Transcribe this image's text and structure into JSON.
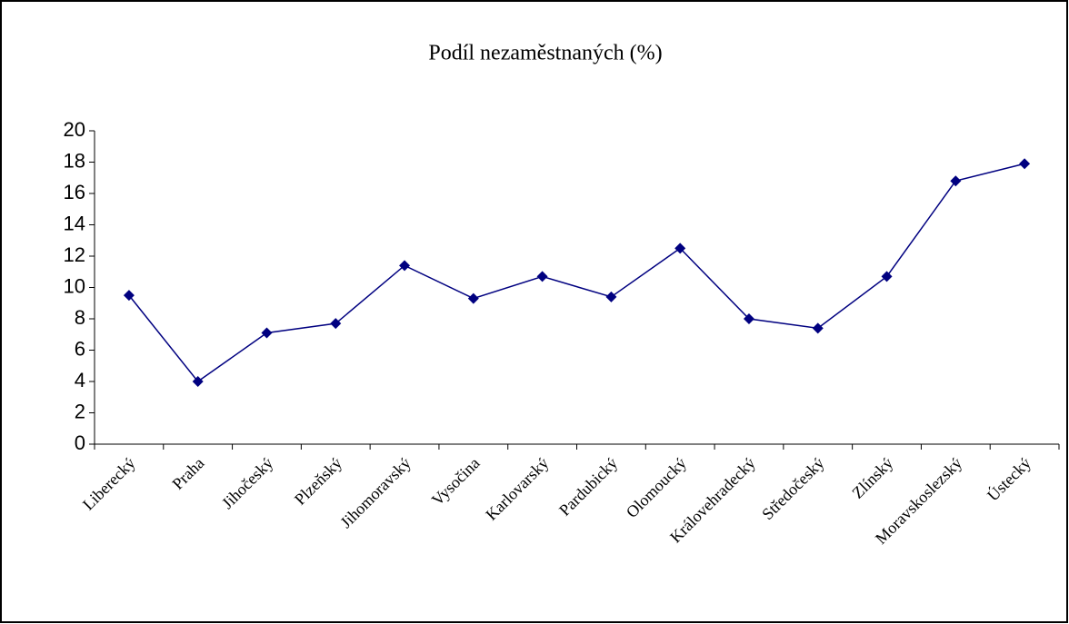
{
  "chart_data": {
    "type": "line",
    "title": "Podíl nezaměstnaných (%)",
    "categories": [
      "Liberecký",
      "Praha",
      "Jihočeský",
      "Plzeňský",
      "Jihomoravský",
      "Vysočina",
      "Karlovarský",
      "Pardubický",
      "Olomoucký",
      "Královehradecký",
      "Středočeský",
      "Zlínský",
      "Moravskoslezský",
      "Ústecký"
    ],
    "values": [
      9.5,
      4.0,
      7.1,
      7.7,
      11.4,
      9.3,
      10.7,
      9.4,
      12.5,
      8.0,
      7.4,
      10.7,
      16.8,
      17.9
    ],
    "color": "#000080",
    "ylim": [
      0,
      20
    ],
    "yticks": [
      0,
      2,
      4,
      6,
      8,
      10,
      12,
      14,
      16,
      18,
      20
    ],
    "grid": false
  }
}
